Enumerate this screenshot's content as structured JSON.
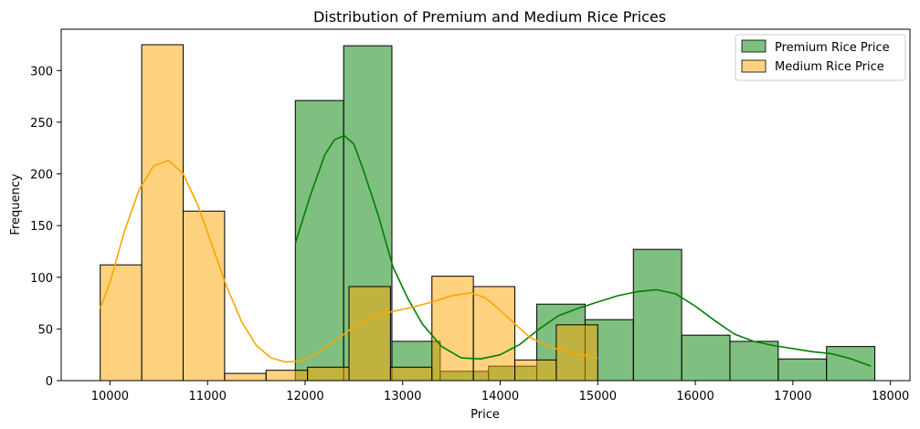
{
  "chart_data": {
    "type": "histogram",
    "title": "Distribution of Premium and Medium Rice Prices",
    "xlabel": "Price",
    "ylabel": "Frequency",
    "xlim": [
      9500,
      18200
    ],
    "ylim": [
      0,
      340
    ],
    "xticks": [
      10000,
      11000,
      12000,
      13000,
      14000,
      15000,
      16000,
      17000,
      18000
    ],
    "yticks": [
      0,
      50,
      100,
      150,
      200,
      250,
      300
    ],
    "legend_position": "top-right",
    "series": [
      {
        "name": "Premium Rice Price",
        "color": "#008000",
        "fill": "#7fbf7f",
        "line_color": "#008000",
        "bins": [
          {
            "x0": 11900,
            "x1": 12395,
            "count": 271
          },
          {
            "x0": 12395,
            "x1": 12890,
            "count": 324
          },
          {
            "x0": 12890,
            "x1": 13385,
            "count": 38
          },
          {
            "x0": 13385,
            "x1": 13880,
            "count": 9
          },
          {
            "x0": 13880,
            "x1": 14375,
            "count": 14
          },
          {
            "x0": 14375,
            "x1": 14870,
            "count": 74
          },
          {
            "x0": 14870,
            "x1": 15365,
            "count": 59
          },
          {
            "x0": 15365,
            "x1": 15860,
            "count": 127
          },
          {
            "x0": 15860,
            "x1": 16355,
            "count": 44
          },
          {
            "x0": 16355,
            "x1": 16850,
            "count": 38
          },
          {
            "x0": 16850,
            "x1": 17345,
            "count": 21
          },
          {
            "x0": 17345,
            "x1": 17840,
            "count": 33
          }
        ],
        "kde": [
          [
            11900,
            133
          ],
          [
            12050,
            178
          ],
          [
            12200,
            218
          ],
          [
            12300,
            233
          ],
          [
            12400,
            237
          ],
          [
            12500,
            229
          ],
          [
            12600,
            203
          ],
          [
            12750,
            160
          ],
          [
            12900,
            110
          ],
          [
            13050,
            80
          ],
          [
            13200,
            55
          ],
          [
            13400,
            33
          ],
          [
            13600,
            22
          ],
          [
            13800,
            21
          ],
          [
            14000,
            25
          ],
          [
            14200,
            35
          ],
          [
            14400,
            50
          ],
          [
            14600,
            63
          ],
          [
            14800,
            70
          ],
          [
            15000,
            76
          ],
          [
            15200,
            82
          ],
          [
            15400,
            86
          ],
          [
            15600,
            88
          ],
          [
            15800,
            84
          ],
          [
            16000,
            72
          ],
          [
            16200,
            58
          ],
          [
            16400,
            45
          ],
          [
            16600,
            38
          ],
          [
            16800,
            34
          ],
          [
            17000,
            31
          ],
          [
            17200,
            28
          ],
          [
            17400,
            26
          ],
          [
            17600,
            21
          ],
          [
            17800,
            14
          ]
        ]
      },
      {
        "name": "Medium Rice Price",
        "color": "#ffa500",
        "fill": "#ffcd7f",
        "line_color": "#ffa500",
        "bins": [
          {
            "x0": 9900,
            "x1": 10325,
            "count": 112
          },
          {
            "x0": 10325,
            "x1": 10750,
            "count": 325
          },
          {
            "x0": 10750,
            "x1": 11175,
            "count": 164
          },
          {
            "x0": 11175,
            "x1": 11600,
            "count": 7
          },
          {
            "x0": 11600,
            "x1": 12025,
            "count": 10
          },
          {
            "x0": 12025,
            "x1": 12450,
            "count": 13
          },
          {
            "x0": 12450,
            "x1": 12875,
            "count": 91
          },
          {
            "x0": 12875,
            "x1": 13300,
            "count": 13
          },
          {
            "x0": 13300,
            "x1": 13725,
            "count": 101
          },
          {
            "x0": 13725,
            "x1": 14150,
            "count": 91
          },
          {
            "x0": 14150,
            "x1": 14575,
            "count": 20
          },
          {
            "x0": 14575,
            "x1": 15000,
            "count": 54
          }
        ],
        "kde": [
          [
            9900,
            70
          ],
          [
            10000,
            95
          ],
          [
            10150,
            145
          ],
          [
            10300,
            185
          ],
          [
            10450,
            208
          ],
          [
            10600,
            213
          ],
          [
            10750,
            200
          ],
          [
            10900,
            170
          ],
          [
            11050,
            130
          ],
          [
            11200,
            90
          ],
          [
            11350,
            57
          ],
          [
            11500,
            34
          ],
          [
            11650,
            22
          ],
          [
            11800,
            18
          ],
          [
            11950,
            19
          ],
          [
            12100,
            25
          ],
          [
            12300,
            38
          ],
          [
            12500,
            52
          ],
          [
            12700,
            62
          ],
          [
            12900,
            67
          ],
          [
            13100,
            71
          ],
          [
            13300,
            76
          ],
          [
            13500,
            82
          ],
          [
            13700,
            85
          ],
          [
            13850,
            80
          ],
          [
            14000,
            68
          ],
          [
            14150,
            55
          ],
          [
            14300,
            42
          ],
          [
            14450,
            35
          ],
          [
            14600,
            30
          ],
          [
            14800,
            26
          ],
          [
            15000,
            22
          ]
        ]
      }
    ]
  }
}
